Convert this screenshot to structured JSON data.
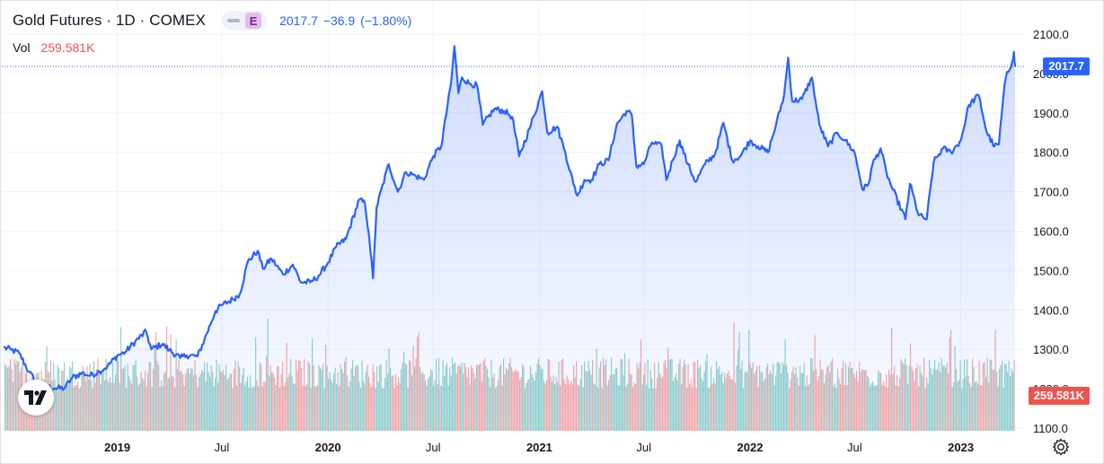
{
  "legend": {
    "title": "Gold Futures · 1D · COMEX",
    "badge": "E",
    "quote": "2017.7  −36.9  (−1.80%)",
    "vol_label": "Vol",
    "vol_value": "259.581K"
  },
  "tags": {
    "price": "2017.7",
    "volume": "259.581K"
  },
  "colors": {
    "line": "#2962ff",
    "vol_up": "#26a69a",
    "vol_down": "#ef5350",
    "text": "#131722"
  },
  "icons": {
    "logo": "tradingview-logo-icon",
    "settings": "gear-icon"
  },
  "chart_data": {
    "type": "area",
    "title": "Gold Futures · 1D · COMEX",
    "xlabel": "",
    "ylabel": "",
    "ylim": [
      1090,
      2120
    ],
    "yticks": [
      2100,
      2000,
      1900,
      1800,
      1700,
      1600,
      1500,
      1400,
      1300,
      1200,
      1100
    ],
    "ytick_labels": [
      "2100.0",
      "2000.0",
      "1900.0",
      "1800.0",
      "1700.0",
      "1600.0",
      "1500.0",
      "1400.0",
      "1300.0",
      "1200.0",
      "1100.0"
    ],
    "xticks": [
      {
        "label": "2019",
        "date": "2019-01-01",
        "bold": true
      },
      {
        "label": "Jul",
        "date": "2019-07-01",
        "bold": false
      },
      {
        "label": "2020",
        "date": "2020-01-01",
        "bold": true
      },
      {
        "label": "Jul",
        "date": "2020-07-01",
        "bold": false
      },
      {
        "label": "2021",
        "date": "2021-01-01",
        "bold": true
      },
      {
        "label": "Jul",
        "date": "2021-07-01",
        "bold": false
      },
      {
        "label": "2022",
        "date": "2022-01-01",
        "bold": true
      },
      {
        "label": "Jul",
        "date": "2022-07-01",
        "bold": false
      },
      {
        "label": "2023",
        "date": "2023-01-01",
        "bold": true
      }
    ],
    "x_range": [
      "2018-06-18",
      "2023-04-05"
    ],
    "last_price": 2017.7,
    "last_volume": "259.581K",
    "series": [
      {
        "values": [
          [
            "2018-06-18",
            1304
          ],
          [
            "2018-07-01",
            1299
          ],
          [
            "2018-07-15",
            1290
          ],
          [
            "2018-08-01",
            1243
          ],
          [
            "2018-08-15",
            1212
          ],
          [
            "2018-09-01",
            1205
          ],
          [
            "2018-09-15",
            1201
          ],
          [
            "2018-10-01",
            1201
          ],
          [
            "2018-10-15",
            1228
          ],
          [
            "2018-11-01",
            1240
          ],
          [
            "2018-11-15",
            1233
          ],
          [
            "2018-12-01",
            1244
          ],
          [
            "2018-12-15",
            1257
          ],
          [
            "2019-01-01",
            1284
          ],
          [
            "2019-01-15",
            1293
          ],
          [
            "2019-02-01",
            1320
          ],
          [
            "2019-02-20",
            1345
          ],
          [
            "2019-03-01",
            1300
          ],
          [
            "2019-03-20",
            1314
          ],
          [
            "2019-04-01",
            1298
          ],
          [
            "2019-04-20",
            1278
          ],
          [
            "2019-05-01",
            1285
          ],
          [
            "2019-05-20",
            1282
          ],
          [
            "2019-06-01",
            1325
          ],
          [
            "2019-06-20",
            1397
          ],
          [
            "2019-07-01",
            1412
          ],
          [
            "2019-07-20",
            1427
          ],
          [
            "2019-08-01",
            1440
          ],
          [
            "2019-08-15",
            1523
          ],
          [
            "2019-09-01",
            1550
          ],
          [
            "2019-09-10",
            1505
          ],
          [
            "2019-09-25",
            1530
          ],
          [
            "2019-10-15",
            1490
          ],
          [
            "2019-11-01",
            1515
          ],
          [
            "2019-11-15",
            1470
          ],
          [
            "2019-12-01",
            1470
          ],
          [
            "2019-12-15",
            1485
          ],
          [
            "2020-01-01",
            1520
          ],
          [
            "2020-01-15",
            1560
          ],
          [
            "2020-02-01",
            1580
          ],
          [
            "2020-02-24",
            1680
          ],
          [
            "2020-03-05",
            1670
          ],
          [
            "2020-03-12",
            1590
          ],
          [
            "2020-03-19",
            1480
          ],
          [
            "2020-03-25",
            1660
          ],
          [
            "2020-04-15",
            1770
          ],
          [
            "2020-05-01",
            1700
          ],
          [
            "2020-05-15",
            1750
          ],
          [
            "2020-06-01",
            1740
          ],
          [
            "2020-06-15",
            1730
          ],
          [
            "2020-07-01",
            1790
          ],
          [
            "2020-07-15",
            1815
          ],
          [
            "2020-08-01",
            1975
          ],
          [
            "2020-08-07",
            2070
          ],
          [
            "2020-08-14",
            1950
          ],
          [
            "2020-08-20",
            1990
          ],
          [
            "2020-09-01",
            1975
          ],
          [
            "2020-09-15",
            1970
          ],
          [
            "2020-09-25",
            1870
          ],
          [
            "2020-10-15",
            1910
          ],
          [
            "2020-11-01",
            1905
          ],
          [
            "2020-11-15",
            1890
          ],
          [
            "2020-11-27",
            1790
          ],
          [
            "2020-12-15",
            1860
          ],
          [
            "2021-01-06",
            1955
          ],
          [
            "2021-01-15",
            1850
          ],
          [
            "2021-02-01",
            1865
          ],
          [
            "2021-02-15",
            1800
          ],
          [
            "2021-03-01",
            1720
          ],
          [
            "2021-03-08",
            1690
          ],
          [
            "2021-03-20",
            1730
          ],
          [
            "2021-04-01",
            1730
          ],
          [
            "2021-04-15",
            1770
          ],
          [
            "2021-05-01",
            1780
          ],
          [
            "2021-05-15",
            1870
          ],
          [
            "2021-06-01",
            1905
          ],
          [
            "2021-06-10",
            1895
          ],
          [
            "2021-06-18",
            1765
          ],
          [
            "2021-07-01",
            1770
          ],
          [
            "2021-07-15",
            1825
          ],
          [
            "2021-08-01",
            1815
          ],
          [
            "2021-08-09",
            1730
          ],
          [
            "2021-08-20",
            1780
          ],
          [
            "2021-09-01",
            1830
          ],
          [
            "2021-09-15",
            1770
          ],
          [
            "2021-09-29",
            1725
          ],
          [
            "2021-10-15",
            1770
          ],
          [
            "2021-11-01",
            1795
          ],
          [
            "2021-11-16",
            1875
          ],
          [
            "2021-12-01",
            1780
          ],
          [
            "2021-12-15",
            1790
          ],
          [
            "2022-01-01",
            1830
          ],
          [
            "2022-01-15",
            1815
          ],
          [
            "2022-02-01",
            1800
          ],
          [
            "2022-02-15",
            1870
          ],
          [
            "2022-03-01",
            1945
          ],
          [
            "2022-03-08",
            2040
          ],
          [
            "2022-03-15",
            1930
          ],
          [
            "2022-04-01",
            1935
          ],
          [
            "2022-04-18",
            1990
          ],
          [
            "2022-05-01",
            1870
          ],
          [
            "2022-05-16",
            1815
          ],
          [
            "2022-06-01",
            1850
          ],
          [
            "2022-06-15",
            1830
          ],
          [
            "2022-07-01",
            1800
          ],
          [
            "2022-07-15",
            1705
          ],
          [
            "2022-07-25",
            1720
          ],
          [
            "2022-08-01",
            1770
          ],
          [
            "2022-08-15",
            1810
          ],
          [
            "2022-08-25",
            1750
          ],
          [
            "2022-09-01",
            1720
          ],
          [
            "2022-09-27",
            1630
          ],
          [
            "2022-10-05",
            1720
          ],
          [
            "2022-10-20",
            1640
          ],
          [
            "2022-11-03",
            1630
          ],
          [
            "2022-11-15",
            1775
          ],
          [
            "2022-12-01",
            1810
          ],
          [
            "2022-12-15",
            1800
          ],
          [
            "2023-01-01",
            1830
          ],
          [
            "2023-01-15",
            1920
          ],
          [
            "2023-02-01",
            1945
          ],
          [
            "2023-02-15",
            1850
          ],
          [
            "2023-02-28",
            1815
          ],
          [
            "2023-03-08",
            1820
          ],
          [
            "2023-03-15",
            1930
          ],
          [
            "2023-03-20",
            1990
          ],
          [
            "2023-03-31",
            2030
          ],
          [
            "2023-04-03",
            2055
          ],
          [
            "2023-04-05",
            2017.7
          ]
        ]
      }
    ],
    "volume_range": [
      0,
      400000
    ]
  }
}
